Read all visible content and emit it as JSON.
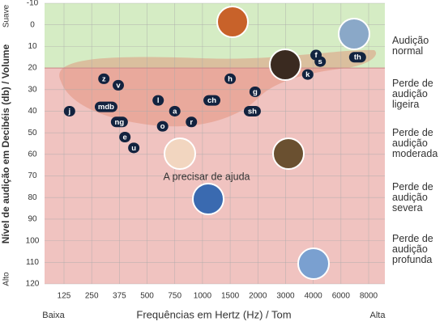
{
  "chart_data": {
    "type": "audiogram",
    "y_label": "Nível de audição em Decibéis (db) / Volume",
    "y_top_label": "Suave",
    "y_bottom_label": "Alto",
    "x_label": "Frequências em Hertz (Hz) / Tom",
    "x_left_label": "Baixa",
    "x_right_label": "Alta",
    "annotation": "A precisar de ajuda",
    "ylim": [
      -10,
      120
    ],
    "yticks": [
      -10,
      0,
      10,
      20,
      30,
      40,
      50,
      60,
      70,
      80,
      90,
      100,
      110,
      120
    ],
    "xticks": [
      125,
      250,
      375,
      500,
      750,
      1000,
      1500,
      2000,
      3000,
      4000,
      6000,
      8000
    ],
    "normal_limit": 20,
    "grid": true,
    "zones": [
      {
        "label": "Audição normal",
        "y": 10
      },
      {
        "label": "Perde de audição ligeira",
        "y": 32
      },
      {
        "label": "Perde de audição moderada",
        "y": 55
      },
      {
        "label": "Perde de audição severa",
        "y": 80
      },
      {
        "label": "Perde de audição profunda",
        "y": 104
      }
    ],
    "phonemes": [
      {
        "label": "z",
        "x": 305,
        "y": 25
      },
      {
        "label": "v",
        "x": 370,
        "y": 28
      },
      {
        "label": "j",
        "x": 150,
        "y": 40
      },
      {
        "label": "mdb",
        "x": 315,
        "y": 38
      },
      {
        "label": "ng",
        "x": 375,
        "y": 45
      },
      {
        "label": "e",
        "x": 400,
        "y": 52
      },
      {
        "label": "u",
        "x": 440,
        "y": 57
      },
      {
        "label": "l",
        "x": 600,
        "y": 35
      },
      {
        "label": "a",
        "x": 750,
        "y": 40
      },
      {
        "label": "o",
        "x": 640,
        "y": 47
      },
      {
        "label": "r",
        "x": 900,
        "y": 45
      },
      {
        "label": "ch",
        "x": 1170,
        "y": 35
      },
      {
        "label": "h",
        "x": 1500,
        "y": 25
      },
      {
        "label": "g",
        "x": 1950,
        "y": 31
      },
      {
        "label": "sh",
        "x": 1900,
        "y": 40
      },
      {
        "label": "k",
        "x": 3800,
        "y": 23
      },
      {
        "label": "f",
        "x": 4200,
        "y": 14
      },
      {
        "label": "s",
        "x": 4500,
        "y": 17
      },
      {
        "label": "th",
        "x": 7200,
        "y": 15
      }
    ]
  }
}
